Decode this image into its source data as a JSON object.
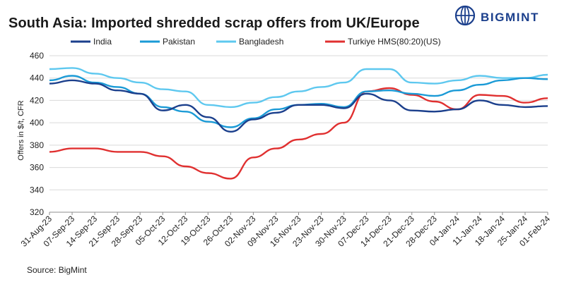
{
  "header": {
    "title": "South Asia: Imported shredded scrap offers from UK/Europe",
    "brand": "BIGMINT"
  },
  "footer": {
    "source": "Source: BigMint"
  },
  "colors": {
    "india": "#1b3f8c",
    "pakistan": "#1a9ad6",
    "bangladesh": "#5ec8ef",
    "turkiye": "#e03030",
    "brand": "#1b3f8c"
  },
  "chart_data": {
    "type": "line",
    "title": "South Asia: Imported shredded scrap offers from UK/Europe",
    "xlabel": "",
    "ylabel": "Offers in $/t, CFR",
    "ylim": [
      320,
      460
    ],
    "yticks": [
      320,
      340,
      360,
      380,
      400,
      420,
      440,
      460
    ],
    "grid": "horizontal",
    "legend": "top",
    "categories": [
      "31-Aug-23",
      "07-Sep-23",
      "14-Sep-23",
      "21-Sep-23",
      "28-Sep-23",
      "05-Oct-23",
      "12-Oct-23",
      "19-Oct-23",
      "26-Oct-23",
      "02-Nov-23",
      "09-Nov-23",
      "16-Nov-23",
      "23-Nov-23",
      "30-Nov-23",
      "07-Dec-23",
      "14-Dec-23",
      "21-Dec-23",
      "28-Dec-23",
      "04-Jan-24",
      "11-Jan-24",
      "18-Jan-24",
      "25-Jan-24",
      "01-Feb-24"
    ],
    "series": [
      {
        "name": "India",
        "values": [
          435,
          438,
          435,
          429,
          426,
          411,
          416,
          405,
          392,
          403,
          409,
          416,
          416,
          413,
          426,
          420,
          411,
          410,
          412,
          420,
          416,
          414,
          415
        ]
      },
      {
        "name": "Pakistan",
        "values": [
          438,
          442,
          436,
          432,
          426,
          414,
          410,
          401,
          396,
          404,
          412,
          416,
          417,
          414,
          428,
          429,
          426,
          424,
          429,
          434,
          438,
          440,
          439
        ]
      },
      {
        "name": "Bangladesh",
        "values": [
          448,
          449,
          444,
          440,
          436,
          430,
          428,
          416,
          414,
          418,
          423,
          428,
          432,
          436,
          448,
          448,
          436,
          435,
          438,
          442,
          440,
          440,
          443
        ]
      },
      {
        "name": "Turkiye HMS(80:20)(US)",
        "values": [
          374,
          377,
          377,
          374,
          374,
          370,
          361,
          355,
          350,
          369,
          377,
          385,
          390,
          400,
          428,
          431,
          425,
          419,
          412,
          425,
          424,
          418,
          422
        ]
      }
    ]
  }
}
